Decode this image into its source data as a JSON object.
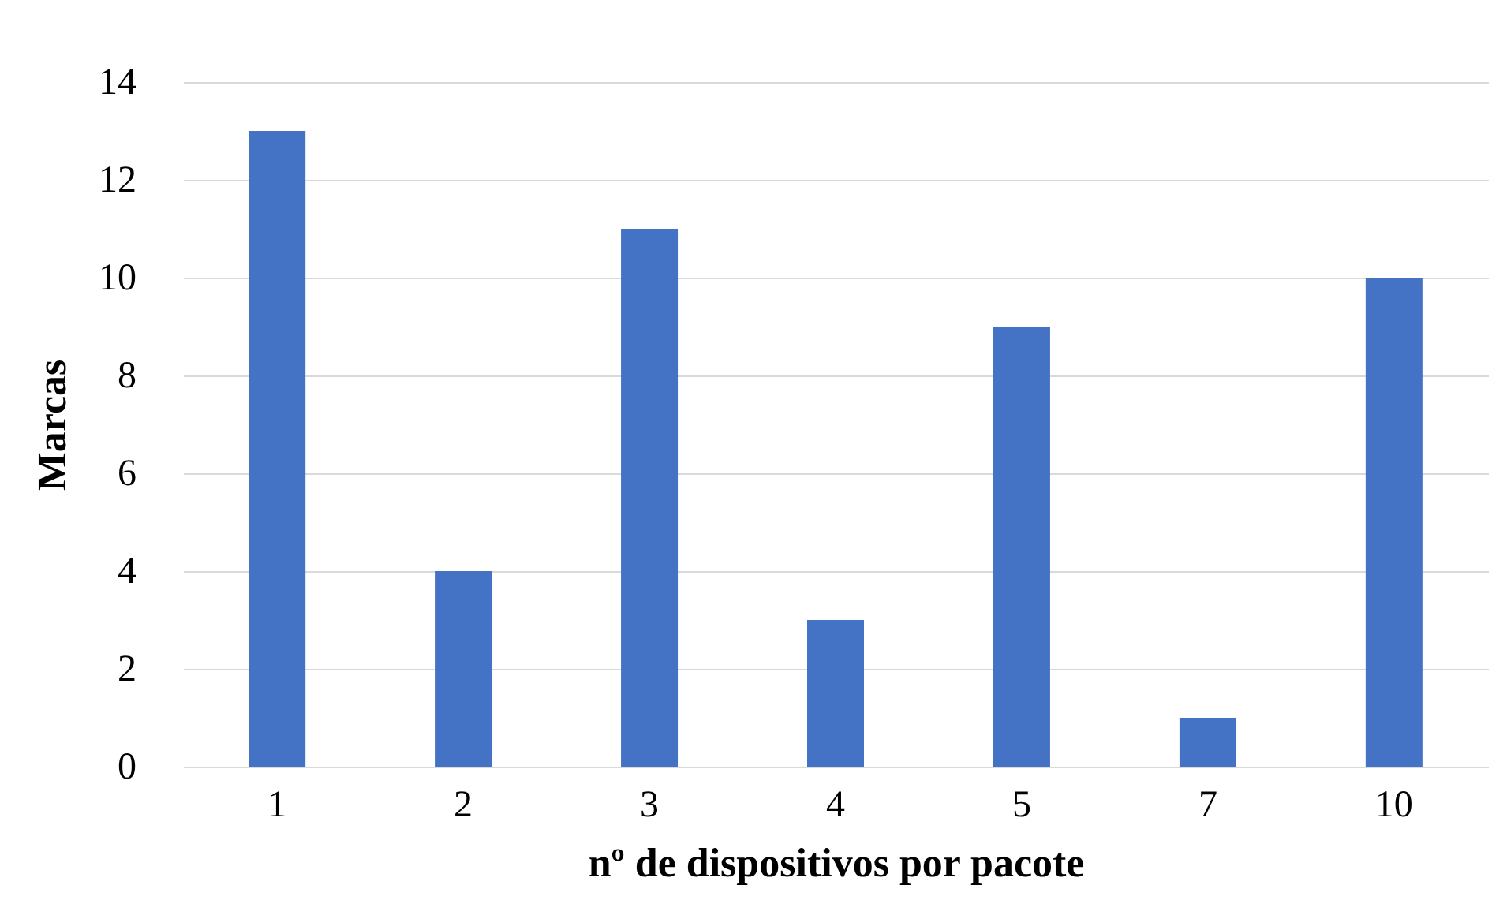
{
  "chart_data": {
    "type": "bar",
    "xlabel": "nº de dispositivos por pacote",
    "ylabel": "Marcas",
    "categories": [
      "1",
      "2",
      "3",
      "4",
      "5",
      "7",
      "10"
    ],
    "values": [
      13,
      4,
      11,
      3,
      9,
      1,
      10
    ],
    "color": "#4472c4",
    "ylim": [
      0,
      14
    ],
    "yticks": [
      0,
      2,
      4,
      6,
      8,
      10,
      12,
      14
    ],
    "grid": "y"
  }
}
